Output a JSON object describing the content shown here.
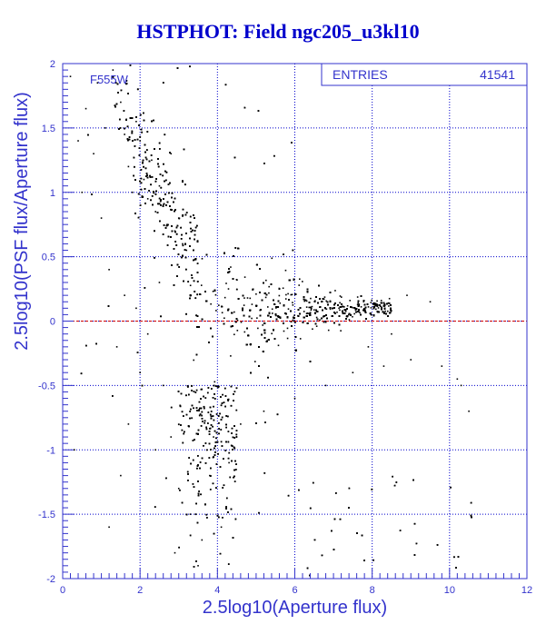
{
  "colors": {
    "background": "#ffffff",
    "title": "#0000cc",
    "axis": "#3333cc",
    "grid": "#0000cc",
    "points": "#000000",
    "zero_line": "#cc0000"
  },
  "chart_data": {
    "type": "scatter",
    "title": "HSTPHOT: Field ngc205_u3kl10",
    "xlabel": "2.5log10(Aperture flux)",
    "ylabel": "2.5log10(PSF flux/Aperture flux)",
    "xlim": [
      0,
      12
    ],
    "ylim": [
      -2,
      2
    ],
    "x_ticks": [
      "0",
      "2",
      "4",
      "6",
      "8",
      "10",
      "12"
    ],
    "y_ticks": [
      "-2",
      "-1.5",
      "-1",
      "-0.5",
      "0",
      "0.5",
      "1",
      "1.5",
      "2"
    ],
    "grid": true,
    "reference_line": {
      "y": 0,
      "style": "dashed",
      "color": "red"
    },
    "filter_label": "F555W",
    "stats_box": {
      "label": "ENTRIES",
      "value": "41541",
      "position": "top-right"
    },
    "distribution": {
      "description_of_shape": "dense wedge converging toward y≈0.1 as x increases",
      "core_x_range": [
        3.3,
        8.5
      ],
      "core_y_center": 0.1,
      "sparse_bright_tail": {
        "x_range": [
          1.3,
          3.5
        ],
        "y_range": [
          0.5,
          2.0
        ]
      },
      "sparse_faint_tail": {
        "x_range": [
          3,
          4.5
        ],
        "y_range": [
          -2.0,
          -0.5
        ]
      }
    },
    "points_sample": [
      [
        0.2,
        1.9
      ],
      [
        0.6,
        1.65
      ],
      [
        0.9,
        1.85
      ],
      [
        1.1,
        1.5
      ],
      [
        0.8,
        1.3
      ],
      [
        1.3,
        1.95
      ],
      [
        1.5,
        1.7
      ],
      [
        1.6,
        1.45
      ],
      [
        1.7,
        1.2
      ],
      [
        1.9,
        1.55
      ],
      [
        2.0,
        1.4
      ],
      [
        1.8,
        1.0
      ],
      [
        2.1,
        1.1
      ],
      [
        2.2,
        0.95
      ],
      [
        2.3,
        1.25
      ],
      [
        2.4,
        0.85
      ],
      [
        2.5,
        1.05
      ],
      [
        2.6,
        0.9
      ],
      [
        2.7,
        0.75
      ],
      [
        2.8,
        1.3
      ],
      [
        2.9,
        0.7
      ],
      [
        3.0,
        0.8
      ],
      [
        3.1,
        0.6
      ],
      [
        3.2,
        0.55
      ],
      [
        1.2,
        0.4
      ],
      [
        1.6,
        0.2
      ],
      [
        1.9,
        0.1
      ],
      [
        2.2,
        -0.1
      ],
      [
        2.5,
        0.3
      ],
      [
        2.0,
        -0.4
      ],
      [
        2.6,
        -0.5
      ],
      [
        1.7,
        -0.8
      ],
      [
        1.5,
        -1.2
      ],
      [
        2.4,
        -1.0
      ],
      [
        2.8,
        -0.9
      ],
      [
        3.0,
        -1.3
      ],
      [
        3.3,
        -1.5
      ],
      [
        3.6,
        -1.7
      ],
      [
        3.8,
        -1.2
      ],
      [
        3.5,
        -1.9
      ],
      [
        4.1,
        -1.6
      ],
      [
        4.3,
        -1.1
      ],
      [
        3.9,
        -0.9
      ],
      [
        4.6,
        -0.8
      ],
      [
        5.2,
        -0.7
      ],
      [
        6.0,
        -0.6
      ],
      [
        6.8,
        -0.5
      ],
      [
        7.5,
        -0.4
      ],
      [
        8.3,
        -0.35
      ],
      [
        9.0,
        -0.3
      ],
      [
        9.8,
        -0.35
      ],
      [
        10.5,
        -0.7
      ],
      [
        10.2,
        -0.45
      ],
      [
        0.5,
        1.0
      ],
      [
        0.4,
        1.4
      ],
      [
        1.0,
        0.8
      ],
      [
        0.3,
        -1.0
      ],
      [
        1.2,
        -1.6
      ],
      [
        2.9,
        -1.8
      ],
      [
        8.9,
        0.2
      ],
      [
        9.5,
        0.15
      ],
      [
        8.5,
        -0.1
      ],
      [
        7.9,
        -0.2
      ],
      [
        10.3,
        -0.5
      ],
      [
        1.4,
        -0.2
      ]
    ]
  }
}
